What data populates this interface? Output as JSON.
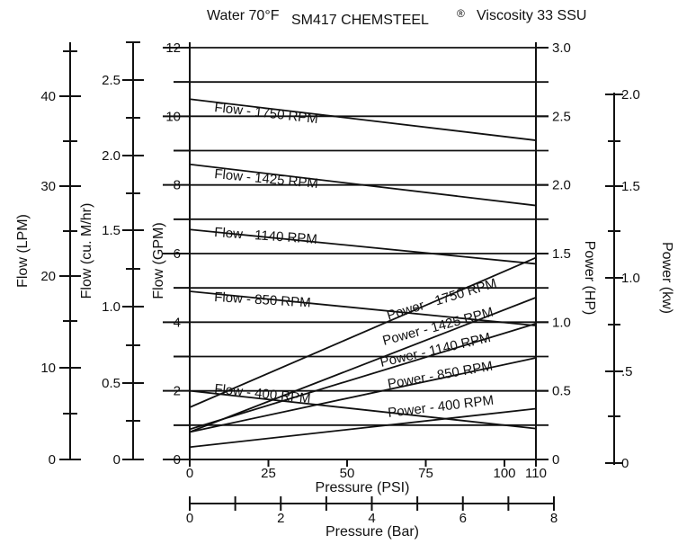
{
  "title": {
    "left": "Water 70°F",
    "center": "SM417 CHEMSTEEL",
    "reg": "®",
    "right": "Viscosity 33 SSU"
  },
  "chart_data": {
    "type": "line",
    "grid": true,
    "x_axes": {
      "psi": {
        "label": "Pressure (PSI)",
        "range": [
          0,
          110
        ],
        "ticks": [
          0,
          25,
          50,
          75,
          100,
          110
        ]
      },
      "bar": {
        "label": "Pressure (Bar)",
        "range": [
          0,
          8
        ],
        "ticks": [
          0,
          2,
          4,
          6,
          8
        ]
      }
    },
    "y_axes": {
      "lpm": {
        "label": "Flow (LPM)",
        "ticks": [
          0,
          10,
          20,
          30,
          40
        ]
      },
      "cum": {
        "label": "Flow (cu. M/hr)",
        "ticks": [
          "0",
          "0.5",
          "1.0",
          "1.5",
          "2.0",
          "2.5"
        ]
      },
      "gpm": {
        "label": "Flow (GPM)",
        "range": [
          0,
          12
        ],
        "ticks": [
          0,
          2,
          4,
          6,
          8,
          10,
          12
        ]
      },
      "hp": {
        "label": "Power (HP)",
        "range": [
          0,
          3
        ],
        "ticks": [
          "0",
          "0.5",
          "1.0",
          "1.5",
          "2.0",
          "2.5",
          "3.0"
        ]
      },
      "kw": {
        "label": "Power (kw)",
        "ticks": [
          "0",
          ".5",
          "1.0",
          "1.5",
          "2.0"
        ]
      }
    },
    "flow_series": [
      {
        "name": "Flow - 1750 RPM",
        "x": [
          0,
          110
        ],
        "y": [
          10.5,
          9.3
        ]
      },
      {
        "name": "Flow - 1425 RPM",
        "x": [
          0,
          110
        ],
        "y": [
          8.6,
          7.4
        ]
      },
      {
        "name": "Flow - 1140 RPM",
        "x": [
          0,
          110
        ],
        "y": [
          6.7,
          5.7
        ]
      },
      {
        "name": "Flow - 850 RPM",
        "x": [
          0,
          110
        ],
        "y": [
          4.9,
          3.9
        ]
      },
      {
        "name": "Flow - 400 RPM",
        "x": [
          0,
          110
        ],
        "y": [
          2.0,
          0.9
        ]
      }
    ],
    "power_series": [
      {
        "name": "Power - 1750 RPM",
        "x": [
          0,
          110
        ],
        "y": [
          0.38,
          1.47
        ]
      },
      {
        "name": "Power - 1425 RPM",
        "x": [
          0,
          110
        ],
        "y": [
          0.2,
          1.18
        ]
      },
      {
        "name": "Power - 1140 RPM",
        "x": [
          0,
          110
        ],
        "y": [
          0.22,
          0.99
        ]
      },
      {
        "name": "Power - 850 RPM",
        "x": [
          0,
          110
        ],
        "y": [
          0.2,
          0.74
        ]
      },
      {
        "name": "Power - 400 RPM",
        "x": [
          0,
          110
        ],
        "y": [
          0.09,
          0.37
        ]
      }
    ]
  }
}
